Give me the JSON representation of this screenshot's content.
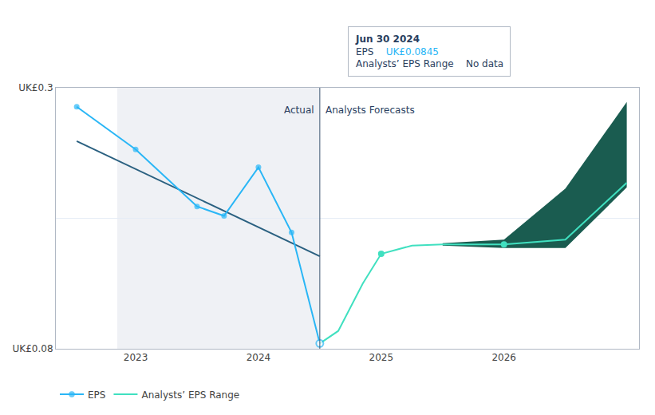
{
  "chart_data": {
    "type": "line",
    "xlim": [
      2022.35,
      2027.1
    ],
    "xticks": [
      2023,
      2024,
      2025,
      2026
    ],
    "ylim": [
      0.08,
      0.3
    ],
    "yticks": [
      {
        "value": 0.08,
        "label": "UK£0.08"
      },
      {
        "value": 0.3,
        "label": "UK£0.3"
      }
    ],
    "grid": "y",
    "legend": "bottom",
    "series": [
      {
        "type": "line",
        "x": [
          2022.52,
          2024.5
        ],
        "values": [
          0.255,
          0.158
        ],
        "color": "#2a6080"
      },
      {
        "type": "band",
        "x": [
          2025.5,
          2026.0,
          2026.5,
          2027.0
        ],
        "values": [
          0.169,
          0.172,
          0.215,
          0.288
        ],
        "lower": [
          0.167,
          0.165,
          0.165,
          0.216
        ],
        "color": "#1a5c50"
      },
      {
        "name": "Analysts’ EPS Range",
        "type": "line",
        "x": [
          2024.5,
          2024.65,
          2024.85,
          2025.0,
          2025.25,
          2025.5,
          2026.0,
          2026.5,
          2027.0
        ],
        "values": [
          0.0845,
          0.095,
          0.135,
          0.16,
          0.167,
          0.168,
          0.168,
          0.172,
          0.22
        ],
        "color": "#40e0c0"
      },
      {
        "type": "scatter",
        "x": [
          2025.0,
          2026.0
        ],
        "values": [
          0.16,
          0.168
        ],
        "color": "#40e0c0",
        "marker": "circle"
      },
      {
        "name": "EPS",
        "type": "line",
        "x": [
          2022.52,
          2023.0,
          2023.5,
          2023.72,
          2024.0,
          2024.27,
          2024.5
        ],
        "values": [
          0.284,
          0.248,
          0.2,
          0.192,
          0.233,
          0.178,
          0.0845
        ],
        "color": "#29b6f6",
        "marker": "circle"
      }
    ],
    "hlines": [
      0.19
    ],
    "vlines": [
      2024.5
    ],
    "highlight": [
      2022.85,
      2024.5
    ],
    "annotations": [
      {
        "text": "Actual",
        "x": 2024.5,
        "y": 0.2875,
        "anchor": "right"
      },
      {
        "text": "Analysts Forecasts",
        "x": 2024.5,
        "y": 0.2875,
        "anchor": "left"
      }
    ],
    "tooltip": {
      "title": "Jun 30 2024",
      "rows": [
        {
          "label": "EPS",
          "value": "UK£0.0845"
        },
        {
          "label": "Analysts’ EPS Range",
          "value": "No data"
        }
      ]
    }
  }
}
